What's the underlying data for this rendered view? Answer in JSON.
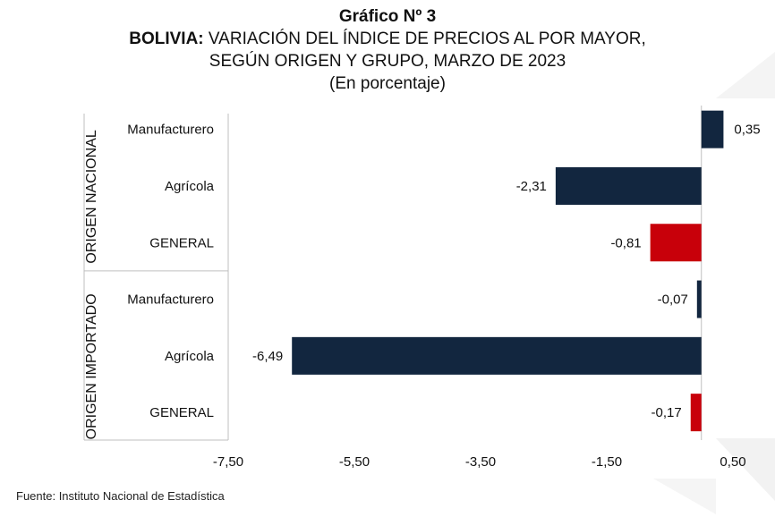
{
  "title": {
    "line1": "Gráfico Nº 3",
    "line2_bold": "BOLIVIA:",
    "line2_rest": " VARIACIÓN DEL ÍNDICE DE PRECIOS AL POR MAYOR,",
    "line3": "SEGÚN ORIGEN Y GRUPO, MARZO DE 2023",
    "line4": "(En porcentaje)"
  },
  "source": "Fuente: Instituto Nacional de Estadística",
  "colors": {
    "navy": "#12263f",
    "red": "#c8000a",
    "axis": "#bfbfbf",
    "deco": "#f3f3f3"
  },
  "chart_data": {
    "type": "bar",
    "orientation": "horizontal",
    "groups": [
      {
        "label": "ORIGEN NACIONAL",
        "items": [
          {
            "category": "Manufacturero",
            "value": 0.35,
            "label": "0,35",
            "color": "navy"
          },
          {
            "category": "Agrícola",
            "value": -2.31,
            "label": "-2,31",
            "color": "navy"
          },
          {
            "category": "GENERAL",
            "value": -0.81,
            "label": "-0,81",
            "color": "red"
          }
        ]
      },
      {
        "label": "ORIGEN IMPORTADO",
        "items": [
          {
            "category": "Manufacturero",
            "value": -0.07,
            "label": "-0,07",
            "color": "navy"
          },
          {
            "category": "Agrícola",
            "value": -6.49,
            "label": "-6,49",
            "color": "navy"
          },
          {
            "category": "GENERAL",
            "value": -0.17,
            "label": "-0,17",
            "color": "red"
          }
        ]
      }
    ],
    "xlim": [
      -7.5,
      0.5
    ],
    "xticks": [
      -7.5,
      -5.5,
      -3.5,
      -1.5,
      0.5
    ],
    "xtick_labels": [
      "-7,50",
      "-5,50",
      "-3,50",
      "-1,50",
      "0,50"
    ],
    "grid": false,
    "legend": "none"
  }
}
